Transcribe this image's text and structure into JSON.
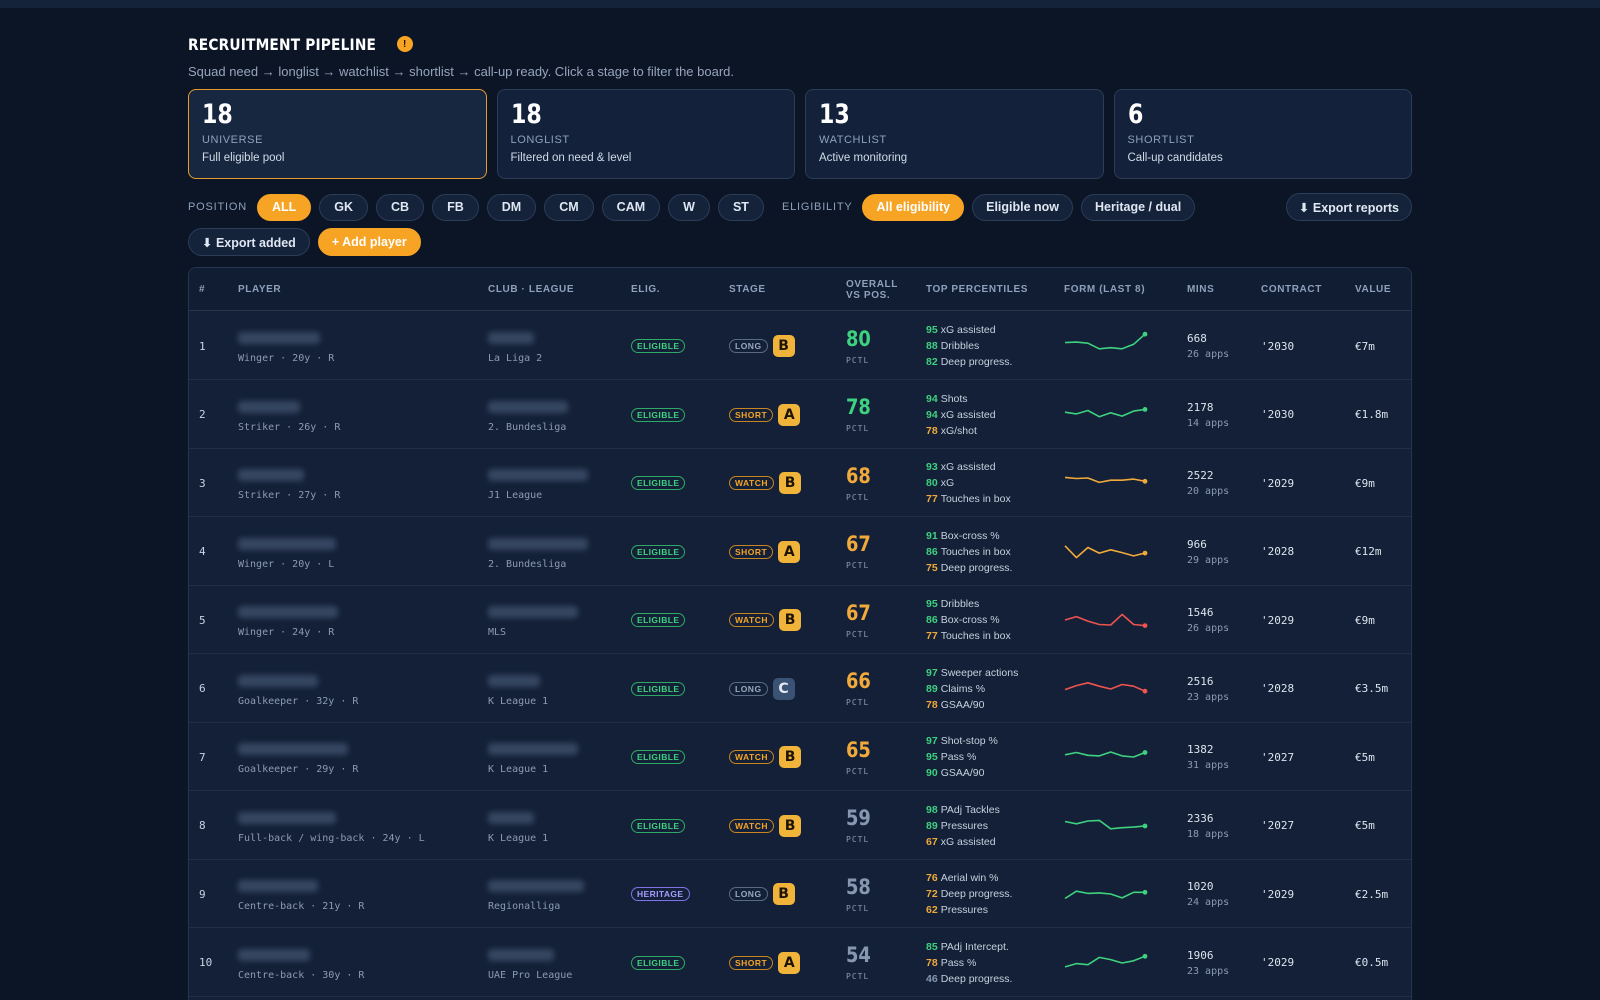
{
  "header": {
    "title": "RECRUITMENT PIPELINE",
    "info_icon": "!",
    "subtitle": "Squad need → longlist → watchlist → shortlist → call-up ready. Click a stage to filter the board."
  },
  "stages": [
    {
      "count": "18",
      "label": "UNIVERSE",
      "desc": "Full eligible pool"
    },
    {
      "count": "18",
      "label": "LONGLIST",
      "desc": "Filtered on need & level"
    },
    {
      "count": "13",
      "label": "WATCHLIST",
      "desc": "Active monitoring"
    },
    {
      "count": "6",
      "label": "SHORTLIST",
      "desc": "Call-up candidates"
    }
  ],
  "filters": {
    "position_label": "POSITION",
    "positions": [
      "ALL",
      "GK",
      "CB",
      "FB",
      "DM",
      "CM",
      "CAM",
      "W",
      "ST"
    ],
    "selected_position": "ALL",
    "eligibility_label": "ELIGIBILITY",
    "eligibility": [
      "All eligibility",
      "Eligible now",
      "Heritage / dual"
    ],
    "selected_eligibility": "All eligibility",
    "export_reports": "⬇ Export reports"
  },
  "actions": {
    "export_added": "⬇ Export added",
    "add_player": "+ Add player"
  },
  "table": {
    "headers": {
      "num": "#",
      "player": "PLAYER",
      "club": "CLUB · LEAGUE",
      "elig": "ELIG.",
      "stage": "STAGE",
      "overall_1": "OVERALL",
      "overall_2": "VS POS.",
      "percentiles": "TOP PERCENTILES",
      "form": "FORM (LAST 8)",
      "mins": "MINS",
      "contract": "CONTRACT",
      "value": "VALUE"
    },
    "pctl_label": "PCTL",
    "rows": [
      {
        "num": "1",
        "meta": "Winger · 20y · R",
        "league": "La Liga 2",
        "elig": "ELIGIBLE",
        "stage": "LONG",
        "grade": "B",
        "overall": "80",
        "tone": "green",
        "percentiles": [
          {
            "v": "95",
            "t": "xG assisted",
            "c": "g"
          },
          {
            "v": "88",
            "t": "Dribbles",
            "c": "g"
          },
          {
            "v": "82",
            "t": "Deep progress.",
            "c": "g"
          }
        ],
        "form": [
          62,
          64,
          60,
          40,
          44,
          40,
          56,
          92
        ],
        "form_color": "#3ed17f",
        "mins": "668",
        "apps": "26 apps",
        "contract": "'2030",
        "value": "€7m"
      },
      {
        "num": "2",
        "meta": "Striker · 26y · R",
        "league": "2. Bundesliga",
        "elig": "ELIGIBLE",
        "stage": "SHORT",
        "grade": "A",
        "overall": "78",
        "tone": "green",
        "percentiles": [
          {
            "v": "94",
            "t": "Shots",
            "c": "g"
          },
          {
            "v": "94",
            "t": "xG assisted",
            "c": "g"
          },
          {
            "v": "78",
            "t": "xG/shot",
            "c": "a"
          }
        ],
        "form": [
          60,
          54,
          66,
          44,
          58,
          46,
          64,
          70
        ],
        "form_color": "#3ed17f",
        "mins": "2178",
        "apps": "14 apps",
        "contract": "'2030",
        "value": "€1.8m"
      },
      {
        "num": "3",
        "meta": "Striker · 27y · R",
        "league": "J1 League",
        "elig": "ELIGIBLE",
        "stage": "WATCH",
        "grade": "B",
        "overall": "68",
        "tone": "amber",
        "percentiles": [
          {
            "v": "93",
            "t": "xG assisted",
            "c": "g"
          },
          {
            "v": "80",
            "t": "xG",
            "c": "g"
          },
          {
            "v": "77",
            "t": "Touches in box",
            "c": "a"
          }
        ],
        "form": [
          70,
          66,
          68,
          52,
          60,
          60,
          64,
          56
        ],
        "form_color": "#f0a93a",
        "mins": "2522",
        "apps": "20 apps",
        "contract": "'2029",
        "value": "€9m"
      },
      {
        "num": "4",
        "meta": "Winger · 20y · L",
        "league": "2. Bundesliga",
        "elig": "ELIGIBLE",
        "stage": "SHORT",
        "grade": "A",
        "overall": "67",
        "tone": "amber",
        "percentiles": [
          {
            "v": "91",
            "t": "Box-cross %",
            "c": "g"
          },
          {
            "v": "86",
            "t": "Touches in box",
            "c": "g"
          },
          {
            "v": "75",
            "t": "Deep progress.",
            "c": "a"
          }
        ],
        "form": [
          72,
          30,
          66,
          46,
          58,
          48,
          36,
          46
        ],
        "form_color": "#f0a93a",
        "mins": "966",
        "apps": "29 apps",
        "contract": "'2028",
        "value": "€12m"
      },
      {
        "num": "5",
        "meta": "Winger · 24y · R",
        "league": "MLS",
        "elig": "ELIGIBLE",
        "stage": "WATCH",
        "grade": "B",
        "overall": "67",
        "tone": "amber",
        "percentiles": [
          {
            "v": "95",
            "t": "Dribbles",
            "c": "g"
          },
          {
            "v": "86",
            "t": "Box-cross %",
            "c": "g"
          },
          {
            "v": "77",
            "t": "Touches in box",
            "c": "a"
          }
        ],
        "form": [
          50,
          62,
          46,
          34,
          32,
          70,
          34,
          30
        ],
        "form_color": "#ef5350",
        "mins": "1546",
        "apps": "26 apps",
        "contract": "'2029",
        "value": "€9m"
      },
      {
        "num": "6",
        "meta": "Goalkeeper · 32y · R",
        "league": "K League 1",
        "elig": "ELIGIBLE",
        "stage": "LONG",
        "grade": "C",
        "overall": "66",
        "tone": "amber",
        "percentiles": [
          {
            "v": "97",
            "t": "Sweeper actions",
            "c": "g"
          },
          {
            "v": "89",
            "t": "Claims %",
            "c": "g"
          },
          {
            "v": "78",
            "t": "GSAA/90",
            "c": "a"
          }
        ],
        "form": [
          48,
          62,
          72,
          60,
          50,
          66,
          60,
          42
        ],
        "form_color": "#ef5350",
        "mins": "2516",
        "apps": "23 apps",
        "contract": "'2028",
        "value": "€3.5m"
      },
      {
        "num": "7",
        "meta": "Goalkeeper · 29y · R",
        "league": "K League 1",
        "elig": "ELIGIBLE",
        "stage": "WATCH",
        "grade": "B",
        "overall": "65",
        "tone": "amber",
        "percentiles": [
          {
            "v": "97",
            "t": "Shot-stop %",
            "c": "g"
          },
          {
            "v": "95",
            "t": "Pass %",
            "c": "g"
          },
          {
            "v": "90",
            "t": "GSAA/90",
            "c": "g"
          }
        ],
        "form": [
          58,
          66,
          56,
          54,
          68,
          54,
          50,
          66
        ],
        "form_color": "#3ed17f",
        "mins": "1382",
        "apps": "31 apps",
        "contract": "'2027",
        "value": "€5m"
      },
      {
        "num": "8",
        "meta": "Full-back / wing-back · 24y · L",
        "league": "K League 1",
        "elig": "ELIGIBLE",
        "stage": "WATCH",
        "grade": "B",
        "overall": "59",
        "tone": "grey",
        "percentiles": [
          {
            "v": "98",
            "t": "PAdj Tackles",
            "c": "g"
          },
          {
            "v": "89",
            "t": "Pressures",
            "c": "g"
          },
          {
            "v": "67",
            "t": "xG assisted",
            "c": "a"
          }
        ],
        "form": [
          66,
          58,
          68,
          70,
          40,
          44,
          46,
          50
        ],
        "form_color": "#3ed17f",
        "mins": "2336",
        "apps": "18 apps",
        "contract": "'2027",
        "value": "€5m"
      },
      {
        "num": "9",
        "meta": "Centre-back · 21y · R",
        "league": "Regionalliga",
        "elig": "HERITAGE",
        "stage": "LONG",
        "grade": "B",
        "overall": "58",
        "tone": "grey",
        "percentiles": [
          {
            "v": "76",
            "t": "Aerial win %",
            "c": "a"
          },
          {
            "v": "72",
            "t": "Deep progress.",
            "c": "a"
          },
          {
            "v": "62",
            "t": "Pressures",
            "c": "a"
          }
        ],
        "form": [
          34,
          60,
          52,
          54,
          50,
          36,
          56,
          56
        ],
        "form_color": "#3ed17f",
        "mins": "1020",
        "apps": "24 apps",
        "contract": "'2029",
        "value": "€2.5m"
      },
      {
        "num": "10",
        "meta": "Centre-back · 30y · R",
        "league": "UAE Pro League",
        "elig": "ELIGIBLE",
        "stage": "SHORT",
        "grade": "A",
        "overall": "54",
        "tone": "grey",
        "percentiles": [
          {
            "v": "85",
            "t": "PAdj Intercept.",
            "c": "g"
          },
          {
            "v": "78",
            "t": "Pass %",
            "c": "a"
          },
          {
            "v": "46",
            "t": "Deep progress.",
            "c": "s"
          }
        ],
        "form": [
          36,
          48,
          44,
          70,
          62,
          50,
          58,
          74
        ],
        "form_color": "#3ed17f",
        "mins": "1906",
        "apps": "23 apps",
        "contract": "'2029",
        "value": "€0.5m"
      }
    ]
  }
}
